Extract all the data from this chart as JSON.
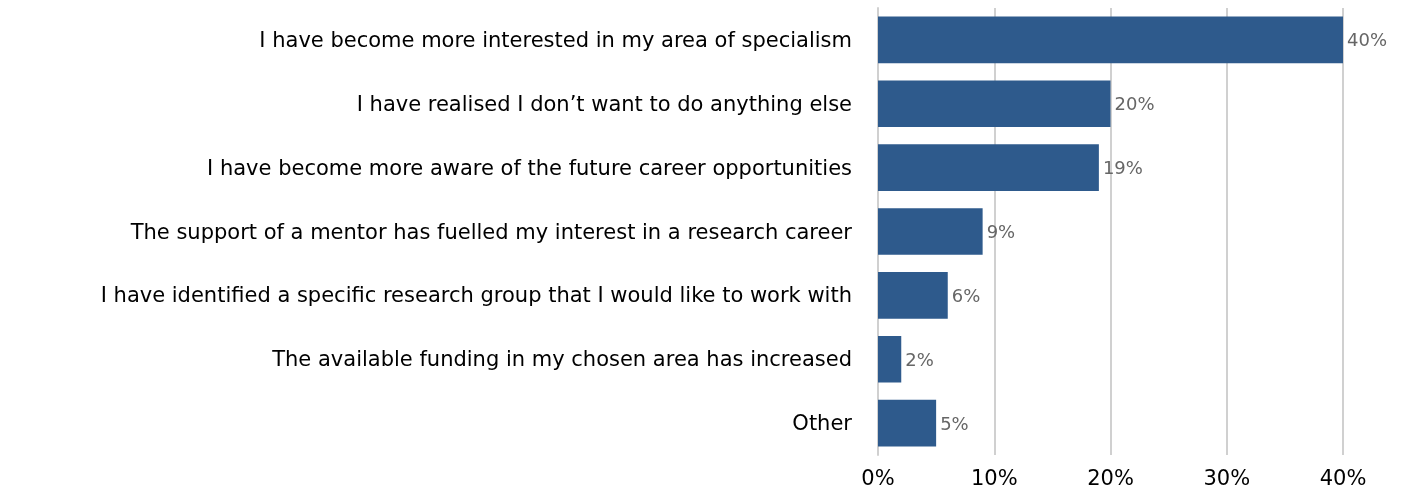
{
  "chart_data": {
    "type": "bar",
    "orientation": "horizontal",
    "categories": [
      "I have become more interested in my area of specialism",
      "I have realised I don’t want to do anything else",
      "I have become more aware of the future career opportunities",
      "The support of a mentor has fuelled my interest in a research career",
      "I have identified a specific research group that I would like to work with",
      "The available funding in my chosen area has increased",
      "Other"
    ],
    "values": [
      40,
      20,
      19,
      9,
      6,
      2,
      5
    ],
    "value_labels": [
      "40%",
      "20%",
      "19%",
      "9%",
      "6%",
      "2%",
      "5%"
    ],
    "color": "#2e5a8c",
    "xlim": [
      0,
      40
    ],
    "xticks": [
      {
        "value": 0,
        "label": "0%"
      },
      {
        "value": 10,
        "label": "10%"
      },
      {
        "value": 20,
        "label": "20%"
      },
      {
        "value": 30,
        "label": "30%"
      },
      {
        "value": 40,
        "label": "40%"
      }
    ],
    "grid": "x"
  }
}
